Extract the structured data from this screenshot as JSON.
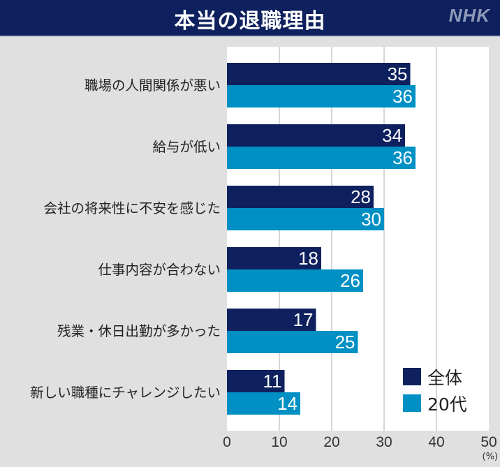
{
  "header": {
    "title": "本当の退職理由",
    "logo": "NHK"
  },
  "colors": {
    "all": "#0e215e",
    "twenties": "#0090c4",
    "header_bg": "#0e215e",
    "background": "#e0e0e0",
    "plot_bg": "#ffffff"
  },
  "chart_data": {
    "type": "bar",
    "orientation": "horizontal",
    "title": "本当の退職理由",
    "categories": [
      "職場の人間関係が悪い",
      "給与が低い",
      "会社の将来性に不安を感じた",
      "仕事内容が合わない",
      "残業・休日出勤が多かった",
      "新しい職種にチャレンジしたい"
    ],
    "series": [
      {
        "name": "全体",
        "values": [
          35,
          34,
          28,
          18,
          17,
          11
        ]
      },
      {
        "name": "20代",
        "values": [
          36,
          36,
          30,
          26,
          25,
          14
        ]
      }
    ],
    "xlabel": "(%)",
    "ylabel": "",
    "xlim": [
      0,
      50
    ],
    "xticks": [
      "0",
      "10",
      "20",
      "30",
      "40",
      "50"
    ],
    "grid": true,
    "legend_position": "bottom-right"
  }
}
